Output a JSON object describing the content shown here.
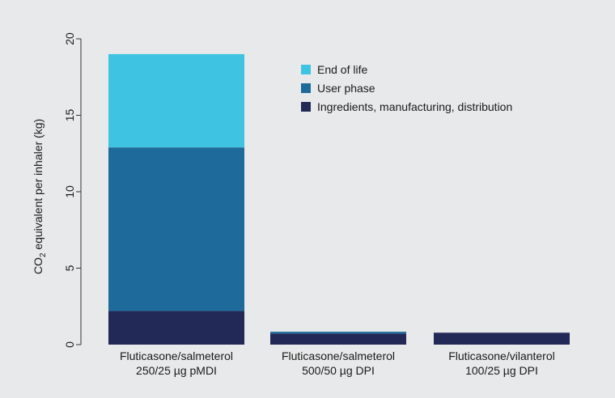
{
  "chart_data": {
    "type": "bar",
    "stacked": true,
    "categories": [
      [
        "Fluticasone/salmeterol",
        "250/25 µg pMDI"
      ],
      [
        "Fluticasone/salmeterol",
        "500/50 µg DPI"
      ],
      [
        "Fluticasone/vilanterol",
        "100/25  µg DPI"
      ]
    ],
    "series": [
      {
        "name": "Ingredients, manufacturing, distribution",
        "color": "#232957",
        "values": [
          2.2,
          0.72,
          0.78
        ]
      },
      {
        "name": "User phase",
        "color": "#1e6a9a",
        "values": [
          10.7,
          0.12,
          0.0
        ]
      },
      {
        "name": "End of life",
        "color": "#3ec3e2",
        "values": [
          6.1,
          0.0,
          0.0
        ]
      }
    ],
    "legend_order": [
      2,
      1,
      0
    ],
    "legend_position": "top-right",
    "ylabel": {
      "main": "CO",
      "sub": "2",
      "rest": " equivalent per inhaler (kg)"
    },
    "ylim": [
      0,
      20
    ],
    "yticks": [
      0,
      5,
      10,
      15,
      20
    ],
    "grid": false
  }
}
